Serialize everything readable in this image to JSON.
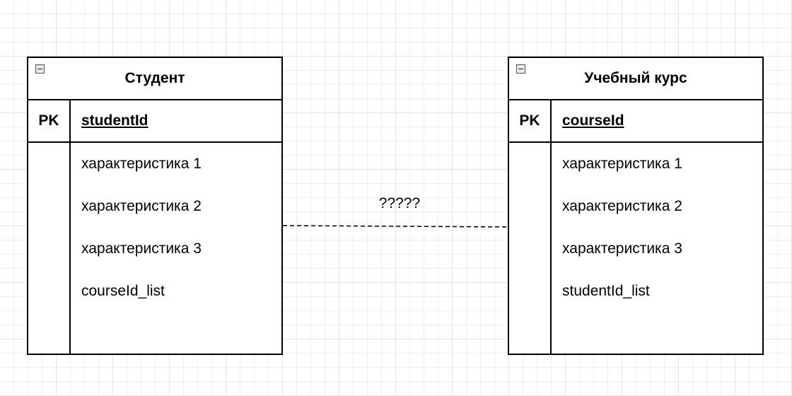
{
  "entities": [
    {
      "title": "Студент",
      "key_label": "PK",
      "primary_key": "studentId",
      "attributes": [
        "характеристика 1",
        "характеристика 2",
        "характеристика 3",
        "courseId_list"
      ]
    },
    {
      "title": "Учебный курс",
      "key_label": "PK",
      "primary_key": "courseId",
      "attributes": [
        "характеристика 1",
        "характеристика 2",
        "характеристика 3",
        "studentId_list"
      ]
    }
  ],
  "relation": {
    "label": "?????"
  }
}
